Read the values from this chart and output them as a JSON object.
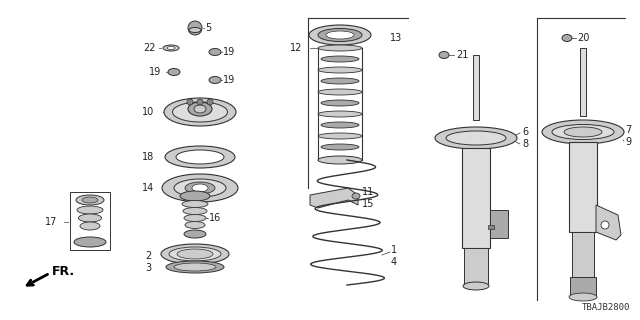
{
  "bg_color": "#ffffff",
  "diagram_code": "TBAJB2800",
  "fr_label": "FR.",
  "line_color": "#333333",
  "gray1": "#888888",
  "gray2": "#aaaaaa",
  "gray3": "#cccccc",
  "gray4": "#dddddd",
  "font_size": 7.0
}
